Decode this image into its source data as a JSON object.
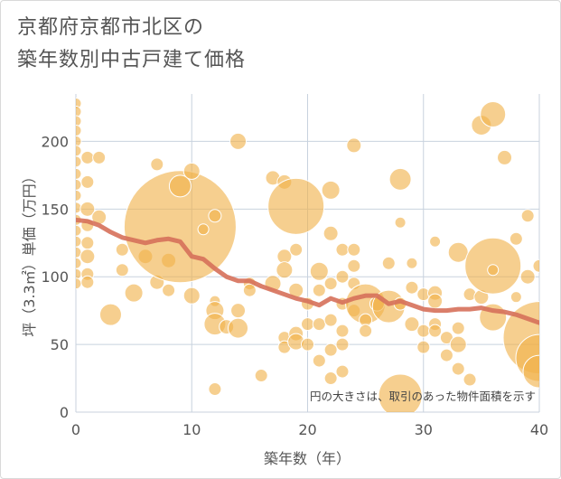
{
  "title_lines": [
    "京都府京都市北区の",
    "築年数別中古戸建て価格"
  ],
  "chart_data": {
    "type": "scatter",
    "title": "京都府京都市北区の築年数別中古戸建て価格",
    "xlabel": "築年数（年）",
    "ylabel": "坪（3.3㎡）単価（万円）",
    "xlim": [
      0,
      40
    ],
    "ylim": [
      0,
      235
    ],
    "xticks": [
      0,
      10,
      20,
      30,
      40
    ],
    "yticks": [
      0,
      50,
      100,
      150,
      200
    ],
    "grid": true,
    "note": "円の大きさは、取引のあった物件面積を示す",
    "colors": {
      "bubble": "#f0b14a",
      "bubble_edge": "#ffffff",
      "trend": "#d6705a",
      "grid": "#c8d2de",
      "axis_text": "#555555"
    },
    "bubbles": [
      {
        "x": 0,
        "y": 228,
        "s": 6
      },
      {
        "x": 0,
        "y": 222,
        "s": 6
      },
      {
        "x": 0,
        "y": 215,
        "s": 6
      },
      {
        "x": 0,
        "y": 208,
        "s": 6
      },
      {
        "x": 0,
        "y": 200,
        "s": 6
      },
      {
        "x": 0,
        "y": 193,
        "s": 6
      },
      {
        "x": 0,
        "y": 185,
        "s": 6
      },
      {
        "x": 0,
        "y": 176,
        "s": 6
      },
      {
        "x": 0,
        "y": 168,
        "s": 6
      },
      {
        "x": 0,
        "y": 160,
        "s": 6
      },
      {
        "x": 0,
        "y": 151,
        "s": 6
      },
      {
        "x": 0,
        "y": 142,
        "s": 6
      },
      {
        "x": 0,
        "y": 134,
        "s": 6
      },
      {
        "x": 0,
        "y": 126,
        "s": 6
      },
      {
        "x": 0,
        "y": 118,
        "s": 6
      },
      {
        "x": 0,
        "y": 110,
        "s": 6
      },
      {
        "x": 0,
        "y": 102,
        "s": 6
      },
      {
        "x": 0,
        "y": 95,
        "s": 6
      },
      {
        "x": 1,
        "y": 188,
        "s": 7
      },
      {
        "x": 1,
        "y": 170,
        "s": 7
      },
      {
        "x": 1,
        "y": 150,
        "s": 8
      },
      {
        "x": 1,
        "y": 138,
        "s": 7
      },
      {
        "x": 1,
        "y": 125,
        "s": 7
      },
      {
        "x": 1,
        "y": 115,
        "s": 8
      },
      {
        "x": 1,
        "y": 102,
        "s": 7
      },
      {
        "x": 1,
        "y": 96,
        "s": 7
      },
      {
        "x": 2,
        "y": 188,
        "s": 7
      },
      {
        "x": 2,
        "y": 144,
        "s": 8
      },
      {
        "x": 3,
        "y": 72,
        "s": 12
      },
      {
        "x": 4,
        "y": 120,
        "s": 7
      },
      {
        "x": 4,
        "y": 105,
        "s": 7
      },
      {
        "x": 5,
        "y": 88,
        "s": 10
      },
      {
        "x": 6,
        "y": 115,
        "s": 8
      },
      {
        "x": 7,
        "y": 183,
        "s": 7
      },
      {
        "x": 7,
        "y": 96,
        "s": 8
      },
      {
        "x": 8,
        "y": 112,
        "s": 8
      },
      {
        "x": 8,
        "y": 90,
        "s": 7
      },
      {
        "x": 9,
        "y": 137,
        "s": 62
      },
      {
        "x": 9,
        "y": 167,
        "s": 12
      },
      {
        "x": 10,
        "y": 178,
        "s": 9
      },
      {
        "x": 10,
        "y": 86,
        "s": 9
      },
      {
        "x": 11,
        "y": 135,
        "s": 6
      },
      {
        "x": 12,
        "y": 145,
        "s": 7
      },
      {
        "x": 12,
        "y": 82,
        "s": 6
      },
      {
        "x": 12,
        "y": 75,
        "s": 10
      },
      {
        "x": 12,
        "y": 65,
        "s": 12
      },
      {
        "x": 12,
        "y": 17,
        "s": 7
      },
      {
        "x": 13,
        "y": 63,
        "s": 8
      },
      {
        "x": 14,
        "y": 200,
        "s": 9
      },
      {
        "x": 14,
        "y": 75,
        "s": 8
      },
      {
        "x": 14,
        "y": 62,
        "s": 11
      },
      {
        "x": 15,
        "y": 95,
        "s": 7
      },
      {
        "x": 15,
        "y": 90,
        "s": 7
      },
      {
        "x": 16,
        "y": 27,
        "s": 7
      },
      {
        "x": 17,
        "y": 173,
        "s": 8
      },
      {
        "x": 17,
        "y": 95,
        "s": 9
      },
      {
        "x": 18,
        "y": 170,
        "s": 8
      },
      {
        "x": 18,
        "y": 115,
        "s": 8
      },
      {
        "x": 18,
        "y": 105,
        "s": 9
      },
      {
        "x": 18,
        "y": 55,
        "s": 7
      },
      {
        "x": 18,
        "y": 48,
        "s": 7
      },
      {
        "x": 19,
        "y": 152,
        "s": 31
      },
      {
        "x": 19,
        "y": 120,
        "s": 7
      },
      {
        "x": 19,
        "y": 90,
        "s": 8
      },
      {
        "x": 19,
        "y": 58,
        "s": 8
      },
      {
        "x": 19,
        "y": 52,
        "s": 9
      },
      {
        "x": 20,
        "y": 80,
        "s": 7
      },
      {
        "x": 20,
        "y": 65,
        "s": 7
      },
      {
        "x": 20,
        "y": 50,
        "s": 7
      },
      {
        "x": 21,
        "y": 104,
        "s": 10
      },
      {
        "x": 21,
        "y": 90,
        "s": 7
      },
      {
        "x": 21,
        "y": 65,
        "s": 7
      },
      {
        "x": 21,
        "y": 38,
        "s": 7
      },
      {
        "x": 22,
        "y": 164,
        "s": 10
      },
      {
        "x": 22,
        "y": 132,
        "s": 8
      },
      {
        "x": 22,
        "y": 95,
        "s": 7
      },
      {
        "x": 22,
        "y": 68,
        "s": 7
      },
      {
        "x": 22,
        "y": 46,
        "s": 7
      },
      {
        "x": 22,
        "y": 25,
        "s": 7
      },
      {
        "x": 23,
        "y": 120,
        "s": 7
      },
      {
        "x": 23,
        "y": 100,
        "s": 7
      },
      {
        "x": 23,
        "y": 80,
        "s": 7
      },
      {
        "x": 23,
        "y": 60,
        "s": 7
      },
      {
        "x": 23,
        "y": 50,
        "s": 7
      },
      {
        "x": 23,
        "y": 30,
        "s": 7
      },
      {
        "x": 24,
        "y": 197,
        "s": 8
      },
      {
        "x": 24,
        "y": 120,
        "s": 7
      },
      {
        "x": 24,
        "y": 108,
        "s": 7
      },
      {
        "x": 24,
        "y": 95,
        "s": 7
      },
      {
        "x": 24,
        "y": 75,
        "s": 7
      },
      {
        "x": 25,
        "y": 80,
        "s": 22
      },
      {
        "x": 25,
        "y": 68,
        "s": 7
      },
      {
        "x": 25,
        "y": 60,
        "s": 7
      },
      {
        "x": 26,
        "y": 80,
        "s": 8
      },
      {
        "x": 27,
        "y": 110,
        "s": 7
      },
      {
        "x": 27,
        "y": 78,
        "s": 18
      },
      {
        "x": 28,
        "y": 172,
        "s": 12
      },
      {
        "x": 28,
        "y": 140,
        "s": 6
      },
      {
        "x": 28,
        "y": 80,
        "s": 7
      },
      {
        "x": 28,
        "y": 12,
        "s": 24
      },
      {
        "x": 29,
        "y": 110,
        "s": 6
      },
      {
        "x": 29,
        "y": 92,
        "s": 7
      },
      {
        "x": 29,
        "y": 65,
        "s": 8
      },
      {
        "x": 30,
        "y": 87,
        "s": 7
      },
      {
        "x": 30,
        "y": 60,
        "s": 7
      },
      {
        "x": 30,
        "y": 48,
        "s": 7
      },
      {
        "x": 31,
        "y": 126,
        "s": 6
      },
      {
        "x": 31,
        "y": 88,
        "s": 8
      },
      {
        "x": 31,
        "y": 82,
        "s": 8
      },
      {
        "x": 31,
        "y": 65,
        "s": 7
      },
      {
        "x": 31,
        "y": 60,
        "s": 7
      },
      {
        "x": 32,
        "y": 55,
        "s": 7
      },
      {
        "x": 32,
        "y": 42,
        "s": 7
      },
      {
        "x": 33,
        "y": 118,
        "s": 11
      },
      {
        "x": 33,
        "y": 62,
        "s": 7
      },
      {
        "x": 33,
        "y": 50,
        "s": 9
      },
      {
        "x": 33,
        "y": 32,
        "s": 7
      },
      {
        "x": 34,
        "y": 87,
        "s": 7
      },
      {
        "x": 34,
        "y": 24,
        "s": 7
      },
      {
        "x": 35,
        "y": 212,
        "s": 11
      },
      {
        "x": 35,
        "y": 85,
        "s": 8
      },
      {
        "x": 36,
        "y": 220,
        "s": 14
      },
      {
        "x": 36,
        "y": 108,
        "s": 31
      },
      {
        "x": 36,
        "y": 105,
        "s": 6
      },
      {
        "x": 36,
        "y": 70,
        "s": 15
      },
      {
        "x": 37,
        "y": 188,
        "s": 8
      },
      {
        "x": 38,
        "y": 128,
        "s": 7
      },
      {
        "x": 38,
        "y": 85,
        "s": 6
      },
      {
        "x": 39,
        "y": 145,
        "s": 7
      },
      {
        "x": 39,
        "y": 100,
        "s": 8
      },
      {
        "x": 40,
        "y": 108,
        "s": 7
      },
      {
        "x": 40,
        "y": 55,
        "s": 40
      },
      {
        "x": 40,
        "y": 40,
        "s": 26
      },
      {
        "x": 40,
        "y": 30,
        "s": 18
      }
    ],
    "trend": {
      "x": [
        0,
        1,
        2,
        3,
        4,
        5,
        6,
        7,
        8,
        9,
        10,
        11,
        12,
        13,
        14,
        15,
        16,
        17,
        18,
        19,
        20,
        21,
        22,
        23,
        24,
        25,
        26,
        27,
        28,
        29,
        30,
        31,
        32,
        33,
        34,
        35,
        36,
        37,
        38,
        39,
        40
      ],
      "y": [
        142,
        141,
        138,
        133,
        129,
        127,
        125,
        127,
        128,
        126,
        115,
        113,
        106,
        100,
        97,
        97,
        93,
        90,
        87,
        84,
        82,
        79,
        84,
        81,
        84,
        86,
        86,
        80,
        82,
        79,
        76,
        75,
        75,
        76,
        76,
        77,
        75,
        74,
        72,
        69,
        66
      ]
    }
  }
}
